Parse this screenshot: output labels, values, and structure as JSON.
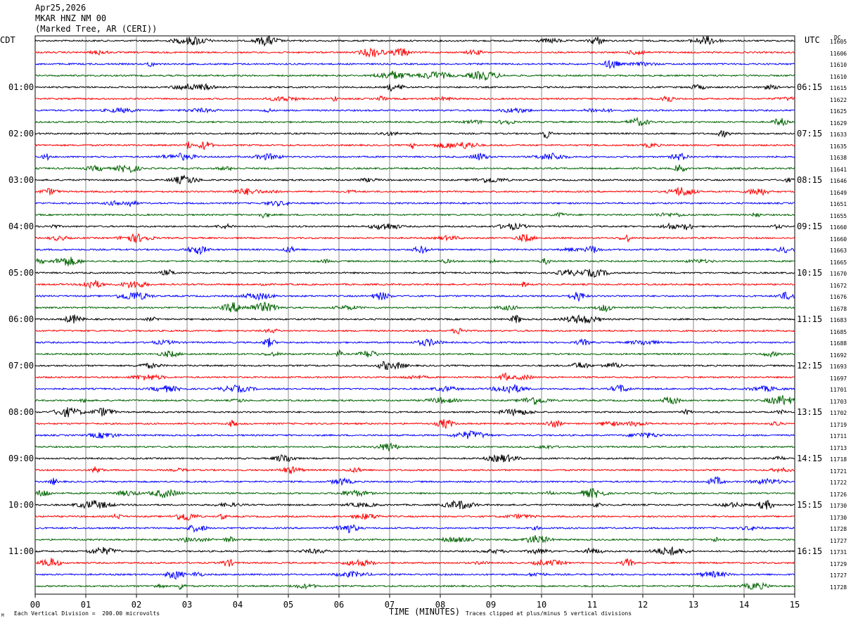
{
  "header": {
    "date": "Apr25,2026",
    "station": "MKAR HNZ NM 00",
    "location": "(Marked Tree, AR (CERI))"
  },
  "left_timezone": "CDT",
  "right_timezone": "UTC",
  "dc_header": "DC",
  "footer": {
    "scale_note": "Each Vertical Division =  200.00 microvolts",
    "clip_note": "Traces clipped at plus/minus 5 vertical divisions",
    "corner_mark": "M"
  },
  "chart_data": {
    "type": "line",
    "title": "",
    "xlabel": "TIME (MINUTES)",
    "ylabel": "",
    "xlim": [
      0,
      15
    ],
    "x_ticks": [
      "00",
      "01",
      "02",
      "03",
      "04",
      "05",
      "06",
      "07",
      "08",
      "09",
      "10",
      "11",
      "12",
      "13",
      "14",
      "15"
    ],
    "trace_count": 48,
    "trace_colors": [
      "#000000",
      "#ff0000",
      "#0000ff",
      "#006400"
    ],
    "left_hour_labels": [
      "01:00",
      "02:00",
      "03:00",
      "04:00",
      "05:00",
      "06:00",
      "07:00",
      "08:00",
      "09:00",
      "10:00",
      "11:00"
    ],
    "right_hour_labels": [
      "06:15",
      "07:15",
      "08:15",
      "09:15",
      "10:15",
      "11:15",
      "12:15",
      "13:15",
      "14:15",
      "15:15",
      "16:15"
    ],
    "dc_offsets": [
      11605,
      11606,
      11610,
      11610,
      11615,
      11622,
      11625,
      11629,
      11633,
      11635,
      11638,
      11641,
      11646,
      11649,
      11651,
      11655,
      11660,
      11660,
      11663,
      11665,
      11670,
      11672,
      11676,
      11678,
      11683,
      11685,
      11688,
      11692,
      11693,
      11697,
      11701,
      11703,
      11702,
      11719,
      11711,
      11713,
      11718,
      11721,
      11722,
      11726,
      11730,
      11730,
      11728,
      11727,
      11731,
      11729,
      11727,
      11728
    ]
  }
}
